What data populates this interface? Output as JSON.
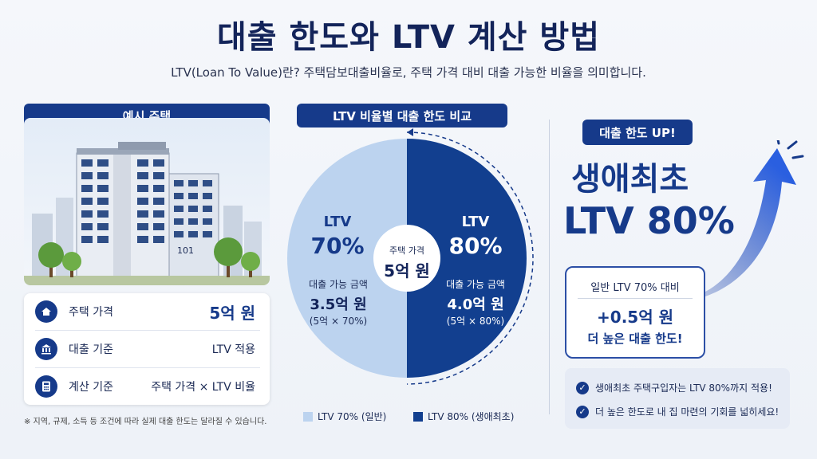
{
  "title": "대출 한도와 LTV 계산 방법",
  "subtitle": "LTV(Loan To Value)란? 주택담보대출비율로, 주택 가격 대비 대출 가능한 비율을 의미합니다.",
  "left": {
    "header": "예시 주택",
    "building_number": "101",
    "rows": [
      {
        "label": "주택 가격",
        "value": "5억 원",
        "icon": "house-icon"
      },
      {
        "label": "대출 기준",
        "value": "LTV 적용",
        "icon": "bank-icon"
      },
      {
        "label": "계산 기준",
        "value": "주택 가격 × LTV 비율",
        "icon": "calculator-icon"
      }
    ],
    "note": "※ 지역, 규제, 소득 등 조건에 따라 실제 대출 한도는 달라질 수 있습니다."
  },
  "center": {
    "header": "LTV 비율별 대출 한도 비교",
    "center_label": "주택 가격",
    "center_value": "5억 원",
    "left_half": {
      "ltv": "LTV",
      "pct": "70%",
      "amount_label": "대출 가능 금액",
      "amount": "3.5억 원",
      "formula": "(5억 × 70%)",
      "color": "#bcd3ef"
    },
    "right_half": {
      "ltv": "LTV",
      "pct": "80%",
      "amount_label": "대출 가능 금액",
      "amount": "4.0억 원",
      "formula": "(5억 × 80%)",
      "color": "#123f8f"
    },
    "legend": [
      {
        "label": "LTV 70% (일반)",
        "color": "#bcd3ef"
      },
      {
        "label": "LTV 80% (생애최초)",
        "color": "#123f8f"
      }
    ]
  },
  "right": {
    "badge": "대출 한도 UP!",
    "headline1": "생애최초",
    "headline2": "LTV 80%",
    "compare_title": "일반 LTV 70% 대비",
    "compare_value": "+0.5억 원",
    "compare_sub": "더 높은 대출 한도!",
    "checks": [
      "생애최초 주택구입자는 LTV 80%까지 적용!",
      "더 높은 한도로 내 집 마련의 기회를 넓히세요!"
    ],
    "accent": "#163a8a"
  }
}
